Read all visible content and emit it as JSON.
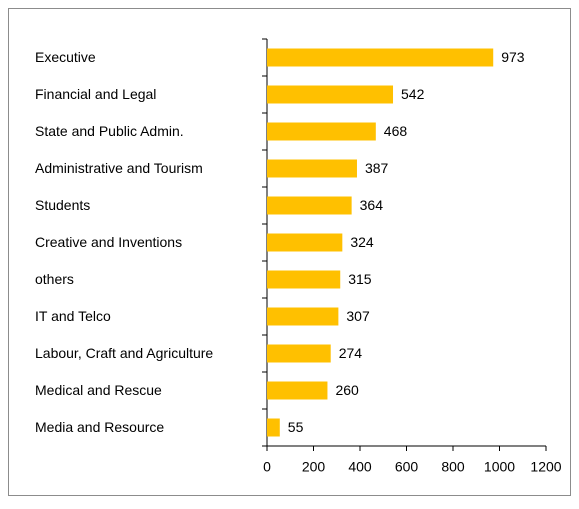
{
  "chart_data": {
    "type": "bar",
    "orientation": "horizontal",
    "categories": [
      "Executive",
      "Financial and Legal",
      "State and Public Admin.",
      "Administrative and Tourism",
      "Students",
      "Creative and Inventions",
      "others",
      "IT and Telco",
      "Labour, Craft and Agriculture",
      "Medical and Rescue",
      "Media and Resource"
    ],
    "values": [
      973,
      542,
      468,
      387,
      364,
      324,
      315,
      307,
      274,
      260,
      55
    ],
    "color": "#ffc000",
    "xlim": [
      0,
      1200
    ],
    "xticks": [
      0,
      200,
      400,
      600,
      800,
      1000,
      1200
    ],
    "grid": false
  }
}
